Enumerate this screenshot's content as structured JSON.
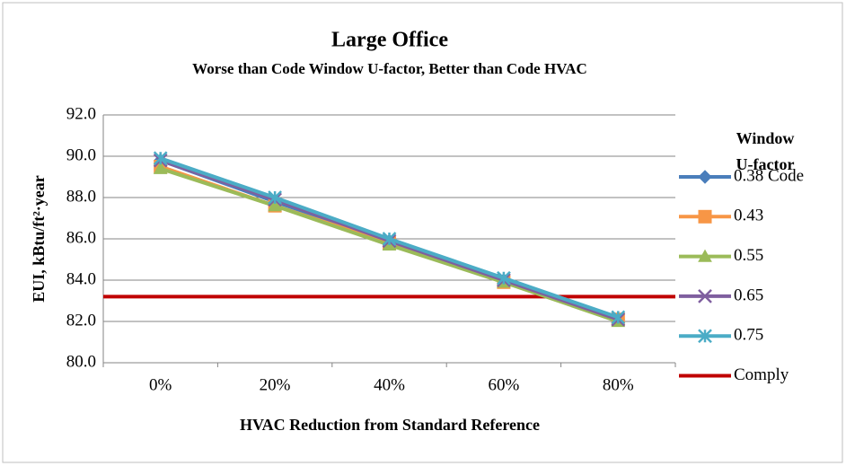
{
  "chart_data": {
    "type": "line",
    "title": "Large Office",
    "subtitle": "Worse than Code Window U-factor,  Better than Code HVAC",
    "x_label": "HVAC Reduction from Standard Reference",
    "y_label": "EUI,  kBtu/ft²·year",
    "legend_title": [
      "Window",
      "U-factor"
    ],
    "legend_position": "right",
    "grid": true,
    "categories": [
      "0%",
      "20%",
      "40%",
      "60%",
      "80%"
    ],
    "ylim": [
      80,
      92
    ],
    "yticks": [
      {
        "value": 80,
        "label": "80.0"
      },
      {
        "value": 82,
        "label": "82.0"
      },
      {
        "value": 84,
        "label": "84.0"
      },
      {
        "value": 86,
        "label": "86.0"
      },
      {
        "value": 88,
        "label": "88.0"
      },
      {
        "value": 90,
        "label": "90.0"
      },
      {
        "value": 92,
        "label": "92.0"
      }
    ],
    "series": [
      {
        "name": "0.38 Code",
        "color": "#4a7ebb",
        "marker": "diamond",
        "values": [
          89.8,
          87.8,
          85.9,
          84.0,
          82.1
        ]
      },
      {
        "name": "0.43",
        "color": "#f79646",
        "marker": "square",
        "values": [
          89.5,
          87.6,
          85.8,
          83.9,
          82.1
        ]
      },
      {
        "name": "0.55",
        "color": "#9bbb59",
        "marker": "triangle",
        "values": [
          89.4,
          87.6,
          85.7,
          83.9,
          82.0
        ]
      },
      {
        "name": "0.65",
        "color": "#7f5f9f",
        "marker": "x",
        "values": [
          89.8,
          87.9,
          85.9,
          84.0,
          82.1
        ]
      },
      {
        "name": "0.75",
        "color": "#4bacc6",
        "marker": "star",
        "values": [
          89.9,
          88.0,
          86.0,
          84.1,
          82.2
        ]
      }
    ],
    "reference_line": {
      "name": "Comply",
      "color": "#c00000",
      "value": 83.2
    }
  }
}
